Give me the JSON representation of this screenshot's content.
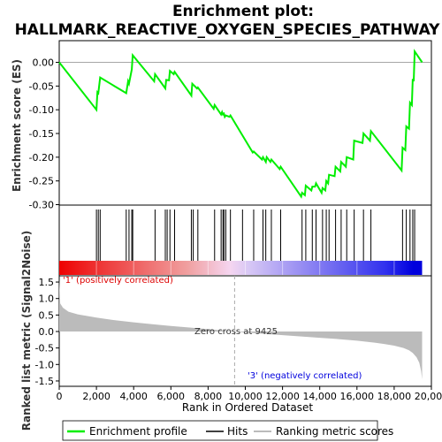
{
  "chart_data": [
    {
      "type": "line",
      "title": "Enrichment plot:",
      "subtitle": "HALLMARK_REACTIVE_OXYGEN_SPECIES_PATHWAY",
      "ylabel": "Enrichment score (ES)",
      "ylim": [
        -0.3,
        0.03
      ],
      "yticks": [
        0.0,
        -0.05,
        -0.1,
        -0.15,
        -0.2,
        -0.25,
        -0.3
      ],
      "ytick_labels": [
        "0.00",
        "-0.05",
        "-0.10",
        "-0.15",
        "-0.20",
        "-0.25",
        "-0.30"
      ],
      "series": [
        {
          "name": "Enrichment profile",
          "color": "#00ee00",
          "x": [
            0,
            2000,
            2050,
            2100,
            2200,
            3600,
            3700,
            3750,
            3900,
            3950,
            5100,
            5150,
            5700,
            5750,
            5900,
            5950,
            6150,
            6200,
            7100,
            7150,
            7400,
            7450,
            8300,
            8350,
            8700,
            8750,
            8800,
            8850,
            8900,
            8950,
            9150,
            9200,
            10400,
            10450,
            10900,
            10950,
            11100,
            11150,
            11350,
            11400,
            11850,
            11900,
            13000,
            13050,
            13200,
            13250,
            13550,
            13600,
            13750,
            13800,
            14100,
            14150,
            14300,
            14350,
            14450,
            14500,
            14800,
            14850,
            15100,
            15150,
            15400,
            15450,
            15800,
            15850,
            16300,
            16350,
            16700,
            16750,
            18400,
            18450,
            18600,
            18650,
            18800,
            18850,
            18950,
            19000,
            19050,
            19100,
            19500
          ],
          "y": [
            0.0,
            -0.1,
            -0.063,
            -0.065,
            -0.032,
            -0.065,
            -0.04,
            -0.045,
            -0.015,
            0.015,
            -0.04,
            -0.025,
            -0.055,
            -0.037,
            -0.038,
            -0.018,
            -0.025,
            -0.02,
            -0.07,
            -0.045,
            -0.055,
            -0.053,
            -0.098,
            -0.09,
            -0.11,
            -0.105,
            -0.11,
            -0.108,
            -0.115,
            -0.112,
            -0.115,
            -0.112,
            -0.19,
            -0.188,
            -0.205,
            -0.2,
            -0.21,
            -0.2,
            -0.21,
            -0.205,
            -0.225,
            -0.22,
            -0.283,
            -0.275,
            -0.28,
            -0.26,
            -0.27,
            -0.262,
            -0.262,
            -0.255,
            -0.275,
            -0.265,
            -0.27,
            -0.25,
            -0.255,
            -0.237,
            -0.24,
            -0.22,
            -0.23,
            -0.21,
            -0.22,
            -0.2,
            -0.205,
            -0.165,
            -0.17,
            -0.15,
            -0.165,
            -0.145,
            -0.228,
            -0.18,
            -0.185,
            -0.135,
            -0.14,
            -0.085,
            -0.09,
            -0.035,
            -0.04,
            0.023,
            0.0
          ]
        }
      ]
    },
    {
      "type": "scatter",
      "name": "Hits",
      "hits": [
        2000,
        2100,
        2200,
        3600,
        3750,
        3900,
        3950,
        5150,
        5700,
        5800,
        5950,
        6200,
        7100,
        7200,
        7450,
        8350,
        8700,
        8800,
        8850,
        8950,
        9200,
        9850,
        10450,
        10950,
        11100,
        11400,
        11900,
        13050,
        13250,
        13600,
        13800,
        14150,
        14350,
        14500,
        14850,
        15150,
        15450,
        15850,
        16350,
        16750,
        18450,
        18650,
        18850,
        19000,
        19100
      ]
    },
    {
      "type": "area",
      "ylabel": "Ranked list metric (Signal2Noise)",
      "xlabel": "Rank in Ordered Dataset",
      "xlim": [
        0,
        20000
      ],
      "ylim": [
        -1.5,
        1.7
      ],
      "xticks": [
        0,
        2000,
        4000,
        6000,
        8000,
        10000,
        12000,
        14000,
        16000,
        18000,
        20000
      ],
      "xtick_labels": [
        "0",
        "2,000",
        "4,000",
        "6,000",
        "8,000",
        "10,000",
        "12,000",
        "14,000",
        "16,000",
        "18,000",
        "20,000"
      ],
      "yticks": [
        1.5,
        1.0,
        0.5,
        0.0,
        -0.5,
        -1.0,
        -1.5
      ],
      "ytick_labels": [
        "1.5",
        "1.0",
        "0.5",
        "0.0",
        "-0.5",
        "-1.0",
        "-1.5"
      ],
      "series": [
        {
          "name": "Ranking metric scores",
          "color": "#bbbbbb",
          "x": [
            0,
            50,
            200,
            500,
            1000,
            2000,
            3000,
            4000,
            5000,
            6000,
            7000,
            8000,
            9000,
            9425,
            10000,
            11000,
            12000,
            13000,
            14000,
            15000,
            16000,
            17000,
            17500,
            18000,
            18500,
            18800,
            19000,
            19200,
            19350,
            19450,
            19500
          ],
          "y": [
            1.6,
            0.85,
            0.72,
            0.6,
            0.52,
            0.42,
            0.34,
            0.28,
            0.22,
            0.17,
            0.12,
            0.07,
            0.02,
            0.0,
            -0.03,
            -0.07,
            -0.11,
            -0.15,
            -0.19,
            -0.23,
            -0.28,
            -0.34,
            -0.38,
            -0.43,
            -0.5,
            -0.57,
            -0.65,
            -0.78,
            -0.95,
            -1.2,
            -1.45
          ]
        }
      ],
      "annotations": {
        "positive": "'1' (positively correlated)",
        "zero_cross": "Zero cross at 9425",
        "negative": "'3' (negatively correlated)"
      },
      "zero_cross": 9425
    }
  ],
  "legend": {
    "items": [
      {
        "label": "Enrichment profile",
        "color": "#00ee00"
      },
      {
        "label": "Hits",
        "color": "#000000"
      },
      {
        "label": "Ranking metric scores",
        "color": "#bbbbbb"
      }
    ]
  },
  "colors": {
    "positive_text": "#dd0000",
    "negative_text": "#0000dd",
    "bar_positive": "#ee0000",
    "bar_negative": "#0000ee"
  }
}
